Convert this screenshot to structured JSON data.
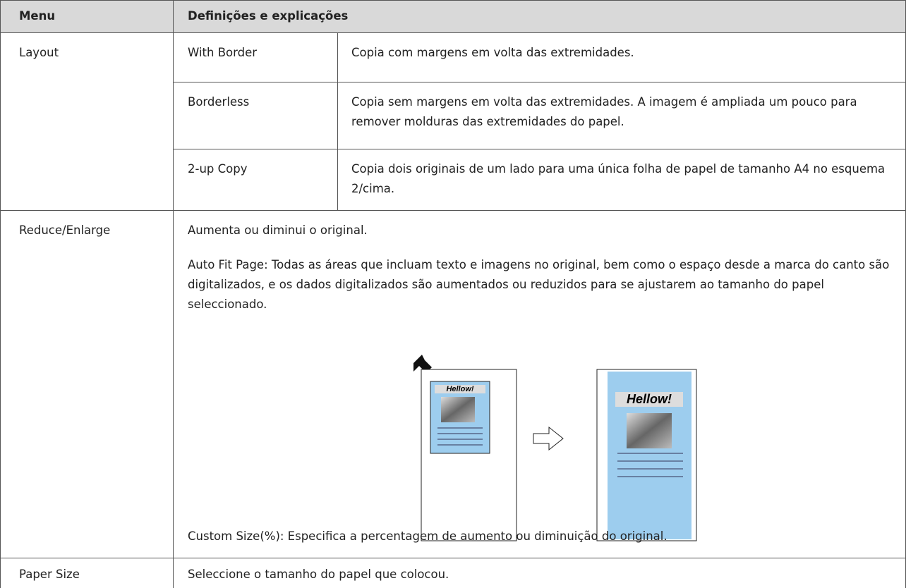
{
  "header": [
    "Menu",
    "Definições e explicações"
  ],
  "layout": {
    "menu": "Layout",
    "options": [
      [
        "With Border",
        "Copia com margens em volta das extremidades."
      ],
      [
        "Borderless",
        "Copia sem margens em volta das extremidades. A imagem é ampliada um pouco para remover molduras das extremidades do papel."
      ],
      [
        "2-up Copy",
        "Copia dois originais de um lado para uma única folha de papel de tamanho A4 no esquema 2/cima."
      ]
    ]
  },
  "reduce_enlarge": {
    "menu": "Reduce/Enlarge",
    "paragraphs": [
      "Aumenta ou diminui o original.",
      "Auto Fit Page: Todas as áreas que incluam texto e imagens no original, bem como o espaço desde a marca do canto são digitalizados, e os dados digitalizados são aumentados ou reduzidos para se ajustarem ao tamanho do papel seleccionado."
    ],
    "figure": {
      "labels": [
        "Hellow!",
        "Hellow!"
      ]
    },
    "note": "Custom Size(%): Especifica a percentagem de aumento ou diminuição do original."
  },
  "paper_size": {
    "menu": "Paper Size",
    "text": "Seleccione o tamanho do papel que colocou."
  }
}
